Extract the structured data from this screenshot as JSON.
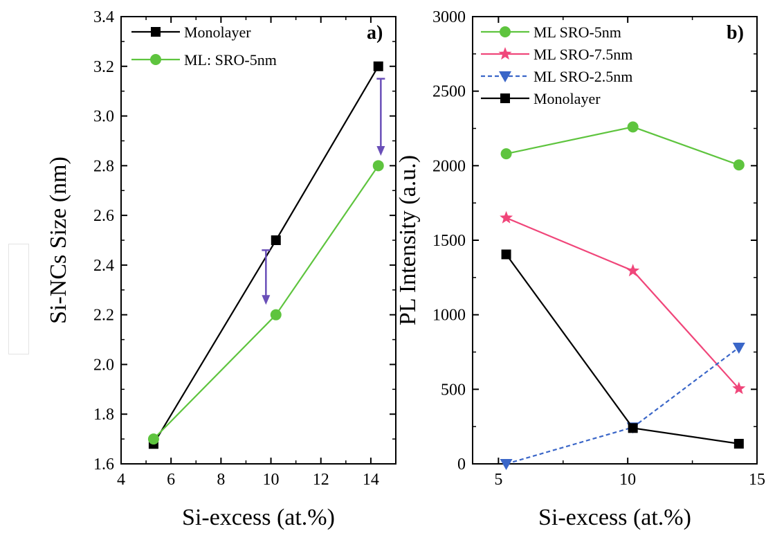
{
  "figure": {
    "panels": [
      {
        "id": "a",
        "panel_label": "a)",
        "colors": {
          "Monolayer": "#000000",
          "ML: SRO-5nm": "#5ec43e"
        }
      },
      {
        "id": "b",
        "panel_label": "b)",
        "colors": {
          "ML SRO-5nm": "#5ec43e",
          "ML SRO-7.5nm": "#f0467a",
          "ML SRO-2.5nm": "#3a66c8",
          "Monolayer": "#000000"
        }
      }
    ]
  },
  "chart_data": [
    {
      "type": "line",
      "panel": "a)",
      "title": "",
      "xlabel": "Si-excess (at.%)",
      "ylabel": "Si-NCs Size (nm)",
      "xlim": [
        4,
        15
      ],
      "ylim": [
        1.6,
        3.4
      ],
      "xticks": [
        4,
        6,
        8,
        10,
        12,
        14
      ],
      "xtick_labels": [
        "4",
        "6",
        "8",
        "10",
        "12",
        "14"
      ],
      "yticks": [
        1.6,
        1.8,
        2.0,
        2.2,
        2.4,
        2.6,
        2.8,
        3.0,
        3.2,
        3.4
      ],
      "ytick_labels": [
        "1.6",
        "1.8",
        "2.0",
        "2.2",
        "2.4",
        "2.6",
        "2.8",
        "3.0",
        "3.2",
        "3.4"
      ],
      "legend_position": "top-left",
      "series": [
        {
          "name": "Monolayer",
          "marker": "square",
          "line": "solid",
          "x": [
            5.3,
            10.2,
            14.3
          ],
          "y": [
            1.68,
            2.5,
            3.2
          ]
        },
        {
          "name": "ML: SRO-5nm",
          "marker": "circle",
          "line": "solid",
          "x": [
            5.3,
            10.2,
            14.3
          ],
          "y": [
            1.7,
            2.2,
            2.8
          ]
        }
      ],
      "annotations": [
        {
          "type": "arrow",
          "color": "#6a4fb8",
          "x": 9.8,
          "y_from": 2.46,
          "y_to": 2.24
        },
        {
          "type": "arrow",
          "color": "#6a4fb8",
          "x": 14.4,
          "y_from": 3.15,
          "y_to": 2.84
        }
      ]
    },
    {
      "type": "line",
      "panel": "b)",
      "title": "",
      "xlabel": "Si-excess (at.%)",
      "ylabel": "PL Intensity (a.u.)",
      "xlim": [
        4,
        15
      ],
      "ylim": [
        0,
        3000
      ],
      "xticks": [
        5,
        10,
        15
      ],
      "xtick_labels": [
        "5",
        "10",
        "15"
      ],
      "yticks": [
        0,
        500,
        1000,
        1500,
        2000,
        2500,
        3000
      ],
      "ytick_labels": [
        "0",
        "500",
        "1000",
        "1500",
        "2000",
        "2500",
        "3000"
      ],
      "legend_position": "top-left",
      "series": [
        {
          "name": "ML SRO-5nm",
          "marker": "circle",
          "line": "solid",
          "x": [
            5.3,
            10.2,
            14.3
          ],
          "y": [
            2080,
            2260,
            2005
          ]
        },
        {
          "name": "ML SRO-7.5nm",
          "marker": "star",
          "line": "solid",
          "x": [
            5.3,
            10.2,
            14.3
          ],
          "y": [
            1650,
            1295,
            505
          ]
        },
        {
          "name": "ML SRO-2.5nm",
          "marker": "triangle-down",
          "line": "dashed",
          "x": [
            5.3,
            10.2,
            14.3
          ],
          "y": [
            0,
            245,
            780
          ]
        },
        {
          "name": "Monolayer",
          "marker": "square",
          "line": "solid",
          "x": [
            5.3,
            10.2,
            14.3
          ],
          "y": [
            1405,
            240,
            135
          ]
        }
      ]
    }
  ]
}
